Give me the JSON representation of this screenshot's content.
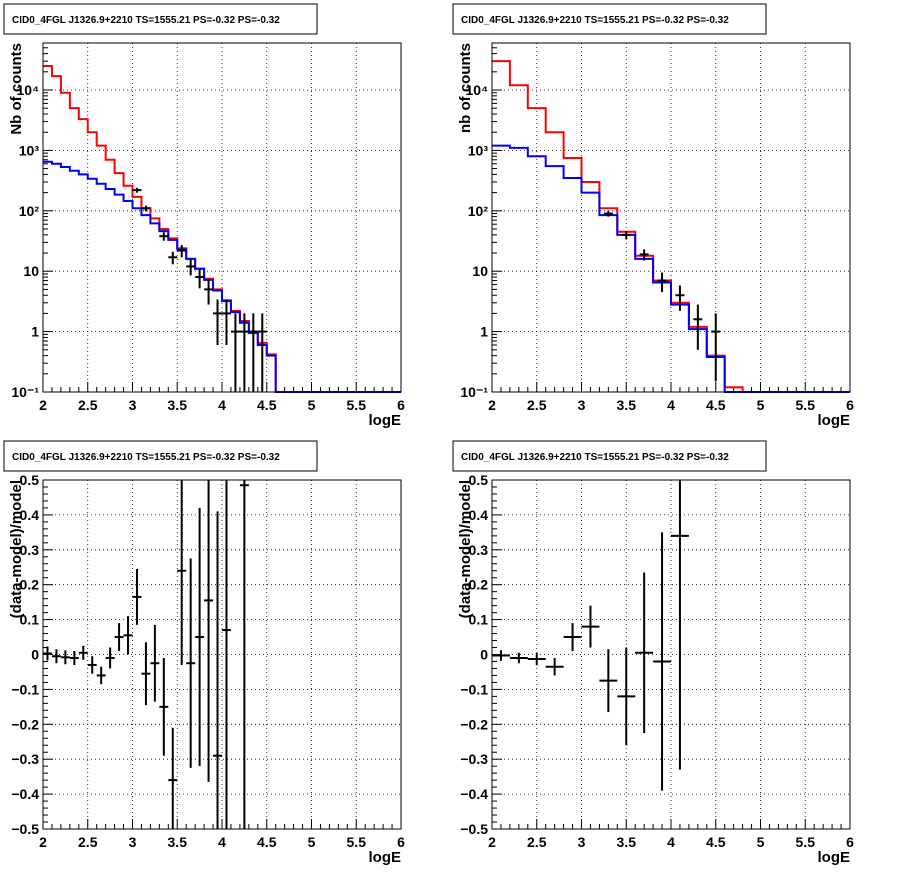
{
  "chart_data": [
    {
      "type": "line",
      "panel": "top-left",
      "title": "CID0_4FGL J1326.9+2210 TS=1555.21 PS=-0.32 PS=-0.32",
      "xlabel": "logE",
      "ylabel": "Nb of counts",
      "xlim": [
        2,
        6
      ],
      "ylim": [
        0.1,
        60000
      ],
      "yscale": "log",
      "xticks": [
        2,
        2.5,
        3,
        3.5,
        4,
        4.5,
        5,
        5.5,
        6
      ],
      "xtick_labels": [
        "2",
        "2.5",
        "3",
        "3.5",
        "4",
        "4.5",
        "5",
        "5.5",
        "6"
      ],
      "yticks": [
        0.1,
        1,
        10,
        100,
        1000,
        10000
      ],
      "ytick_labels": [
        "10⁻¹",
        "1",
        "10",
        "10²",
        "10³",
        "10⁴"
      ],
      "grid": true,
      "bin_edges": [
        2.0,
        2.1,
        2.2,
        2.3,
        2.4,
        2.5,
        2.6,
        2.7,
        2.8,
        2.9,
        3.0,
        3.1,
        3.2,
        3.3,
        3.4,
        3.5,
        3.6,
        3.7,
        3.8,
        3.9,
        4.0,
        4.1,
        4.2,
        4.3,
        4.4,
        4.5,
        4.6,
        4.7,
        4.8,
        4.9,
        5.0,
        5.1,
        5.2,
        5.3,
        5.4,
        5.5,
        5.6,
        5.7,
        5.8,
        5.9,
        6.0
      ],
      "series": [
        {
          "color": "#ff0000",
          "style": "histogram",
          "values": [
            25000,
            17000,
            9000,
            5000,
            3300,
            2000,
            1200,
            700,
            420,
            260,
            170,
            110,
            75,
            50,
            35,
            24,
            16,
            11,
            7.5,
            5,
            3.3,
            2.2,
            1.5,
            1.0,
            0.65,
            0.42,
            0.1,
            0.1,
            0.1,
            0.1,
            0.1,
            0.1,
            0.1,
            0.1,
            0.1,
            0.1,
            0.1,
            0.1,
            0.1,
            0.1
          ]
        },
        {
          "color": "#0000ff",
          "style": "histogram",
          "values": [
            650,
            600,
            530,
            460,
            400,
            340,
            280,
            230,
            185,
            145,
            110,
            85,
            62,
            46,
            33,
            23,
            16,
            11,
            7.2,
            4.8,
            3.2,
            2.1,
            1.4,
            0.95,
            0.6,
            0.4,
            0.1,
            0.1,
            0.1,
            0.1,
            0.1,
            0.1,
            0.1,
            0.1,
            0.1,
            0.1,
            0.1,
            0.1,
            0.1,
            0.1
          ]
        }
      ],
      "data_points": [
        {
          "x": 3.05,
          "y": 220,
          "ylo": 200,
          "yhi": 240
        },
        {
          "x": 3.15,
          "y": 110,
          "ylo": 98,
          "yhi": 122
        },
        {
          "x": 3.35,
          "y": 38,
          "ylo": 32,
          "yhi": 44
        },
        {
          "x": 3.45,
          "y": 17,
          "ylo": 13,
          "yhi": 21
        },
        {
          "x": 3.55,
          "y": 22,
          "ylo": 17,
          "yhi": 27
        },
        {
          "x": 3.65,
          "y": 12,
          "ylo": 8.5,
          "yhi": 15.5
        },
        {
          "x": 3.75,
          "y": 8,
          "ylo": 5.2,
          "yhi": 10.8
        },
        {
          "x": 3.85,
          "y": 5,
          "ylo": 2.8,
          "yhi": 7.2
        },
        {
          "x": 3.95,
          "y": 2,
          "ylo": 0.6,
          "yhi": 3.4
        },
        {
          "x": 4.05,
          "y": 2,
          "ylo": 0.6,
          "yhi": 3.4
        },
        {
          "x": 4.15,
          "y": 1,
          "ylo": 0.1,
          "yhi": 2.0
        },
        {
          "x": 4.25,
          "y": 1,
          "ylo": 0.1,
          "yhi": 2.0
        },
        {
          "x": 4.35,
          "y": 1,
          "ylo": 0.1,
          "yhi": 2.0
        },
        {
          "x": 4.45,
          "y": 1,
          "ylo": 0.1,
          "yhi": 2.0
        }
      ]
    },
    {
      "type": "line",
      "panel": "top-right",
      "title": "CID0_4FGL J1326.9+2210 TS=1555.21 PS=-0.32 PS=-0.32",
      "xlabel": "logE",
      "ylabel": "nb of counts",
      "xlim": [
        2,
        6
      ],
      "ylim": [
        0.1,
        60000
      ],
      "yscale": "log",
      "xticks": [
        2,
        2.5,
        3,
        3.5,
        4,
        4.5,
        5,
        5.5,
        6
      ],
      "xtick_labels": [
        "2",
        "2.5",
        "3",
        "3.5",
        "4",
        "4.5",
        "5",
        "5.5",
        "6"
      ],
      "yticks": [
        0.1,
        1,
        10,
        100,
        1000,
        10000
      ],
      "ytick_labels": [
        "10⁻¹",
        "1",
        "10",
        "10²",
        "10³",
        "10⁴"
      ],
      "grid": true,
      "bin_edges": [
        2.0,
        2.2,
        2.4,
        2.6,
        2.8,
        3.0,
        3.2,
        3.4,
        3.6,
        3.8,
        4.0,
        4.2,
        4.4,
        4.6,
        4.8,
        5.0,
        5.2,
        5.4,
        5.6,
        5.8,
        6.0
      ],
      "series": [
        {
          "color": "#ff0000",
          "style": "histogram",
          "values": [
            30000,
            12000,
            5000,
            2000,
            750,
            300,
            110,
            45,
            18,
            7,
            3,
            1.2,
            0.4,
            0.12,
            0.1,
            0.1,
            0.1,
            0.1,
            0.1,
            0.1
          ]
        },
        {
          "color": "#0000ff",
          "style": "histogram",
          "values": [
            1200,
            1100,
            800,
            550,
            350,
            200,
            85,
            40,
            16,
            6.5,
            2.8,
            1.1,
            0.38,
            0.1,
            0.1,
            0.1,
            0.1,
            0.1,
            0.1,
            0.1
          ]
        }
      ],
      "data_points": [
        {
          "x": 3.3,
          "y": 90,
          "ylo": 80,
          "yhi": 100
        },
        {
          "x": 3.5,
          "y": 40,
          "ylo": 34,
          "yhi": 46
        },
        {
          "x": 3.7,
          "y": 19,
          "ylo": 15,
          "yhi": 23
        },
        {
          "x": 3.9,
          "y": 7,
          "ylo": 4.5,
          "yhi": 9.5
        },
        {
          "x": 4.1,
          "y": 4,
          "ylo": 2.2,
          "yhi": 5.8
        },
        {
          "x": 4.3,
          "y": 1.6,
          "ylo": 0.5,
          "yhi": 2.8
        },
        {
          "x": 4.5,
          "y": 1,
          "ylo": 0.15,
          "yhi": 2.0
        }
      ]
    },
    {
      "type": "scatter",
      "panel": "bottom-left",
      "title": "CID0_4FGL J1326.9+2210 TS=1555.21 PS=-0.32 PS=-0.32",
      "xlabel": "logE",
      "ylabel": "(data-model)/model",
      "xlim": [
        2,
        6
      ],
      "ylim": [
        -0.5,
        0.5
      ],
      "yscale": "linear",
      "xticks": [
        2,
        2.5,
        3,
        3.5,
        4,
        4.5,
        5,
        5.5,
        6
      ],
      "xtick_labels": [
        "2",
        "2.5",
        "3",
        "3.5",
        "4",
        "4.5",
        "5",
        "5.5",
        "6"
      ],
      "yticks": [
        -0.5,
        -0.4,
        -0.3,
        -0.2,
        -0.1,
        0,
        0.1,
        0.2,
        0.3,
        0.4,
        0.5
      ],
      "ytick_labels": [
        "−0.5",
        "−0.4",
        "−0.3",
        "−0.2",
        "−0.1",
        "0",
        "0.1",
        "0.2",
        "0.3",
        "0.4",
        "0.5"
      ],
      "grid": true,
      "data_points": [
        {
          "x": 2.05,
          "y": 0.003,
          "err": 0.02,
          "xerr": 0.05
        },
        {
          "x": 2.15,
          "y": -0.005,
          "err": 0.02,
          "xerr": 0.05
        },
        {
          "x": 2.25,
          "y": -0.008,
          "err": 0.02,
          "xerr": 0.05
        },
        {
          "x": 2.35,
          "y": -0.01,
          "err": 0.02,
          "xerr": 0.05
        },
        {
          "x": 2.45,
          "y": 0.005,
          "err": 0.02,
          "xerr": 0.05
        },
        {
          "x": 2.55,
          "y": -0.03,
          "err": 0.025,
          "xerr": 0.05
        },
        {
          "x": 2.65,
          "y": -0.06,
          "err": 0.025,
          "xerr": 0.05
        },
        {
          "x": 2.75,
          "y": -0.01,
          "err": 0.03,
          "xerr": 0.05
        },
        {
          "x": 2.85,
          "y": 0.05,
          "err": 0.04,
          "xerr": 0.05
        },
        {
          "x": 2.95,
          "y": 0.055,
          "err": 0.055,
          "xerr": 0.05
        },
        {
          "x": 3.05,
          "y": 0.165,
          "err": 0.08,
          "xerr": 0.05
        },
        {
          "x": 3.15,
          "y": -0.055,
          "err": 0.09,
          "xerr": 0.05
        },
        {
          "x": 3.25,
          "y": -0.025,
          "err": 0.11,
          "xerr": 0.05
        },
        {
          "x": 3.35,
          "y": -0.15,
          "err": 0.14,
          "xerr": 0.05
        },
        {
          "x": 3.45,
          "y": -0.36,
          "err": 0.15,
          "xerr": 0.05
        },
        {
          "x": 3.55,
          "y": 0.24,
          "err": 0.27,
          "xerr": 0.05
        },
        {
          "x": 3.65,
          "y": -0.025,
          "err": 0.3,
          "xerr": 0.05
        },
        {
          "x": 3.75,
          "y": 0.05,
          "err": 0.37,
          "xerr": 0.05
        },
        {
          "x": 3.85,
          "y": 0.155,
          "err": 0.52,
          "xerr": 0.05
        },
        {
          "x": 3.95,
          "y": -0.29,
          "err": 0.7,
          "xerr": 0.05
        },
        {
          "x": 4.05,
          "y": 0.07,
          "err": 0.8,
          "xerr": 0.05
        },
        {
          "x": 4.25,
          "y": 0.485,
          "err": 1.0,
          "xerr": 0.05
        }
      ]
    },
    {
      "type": "scatter",
      "panel": "bottom-right",
      "title": "CID0_4FGL J1326.9+2210 TS=1555.21 PS=-0.32 PS=-0.32",
      "xlabel": "logE",
      "ylabel": "(data-model)/model",
      "xlim": [
        2,
        6
      ],
      "ylim": [
        -0.5,
        0.5
      ],
      "yscale": "linear",
      "xticks": [
        2,
        2.5,
        3,
        3.5,
        4,
        4.5,
        5,
        5.5,
        6
      ],
      "xtick_labels": [
        "2",
        "2.5",
        "3",
        "3.5",
        "4",
        "4.5",
        "5",
        "5.5",
        "6"
      ],
      "yticks": [
        -0.5,
        -0.4,
        -0.3,
        -0.2,
        -0.1,
        0,
        0.1,
        0.2,
        0.3,
        0.4,
        0.5
      ],
      "ytick_labels": [
        "−0.5",
        "−0.4",
        "−0.3",
        "−0.2",
        "−0.1",
        "0",
        "0.1",
        "0.2",
        "0.3",
        "0.4",
        "0.5"
      ],
      "grid": true,
      "data_points": [
        {
          "x": 2.1,
          "y": -0.003,
          "err": 0.015,
          "xerr": 0.1
        },
        {
          "x": 2.3,
          "y": -0.01,
          "err": 0.015,
          "xerr": 0.1
        },
        {
          "x": 2.5,
          "y": -0.013,
          "err": 0.018,
          "xerr": 0.1
        },
        {
          "x": 2.7,
          "y": -0.035,
          "err": 0.025,
          "xerr": 0.1
        },
        {
          "x": 2.9,
          "y": 0.05,
          "err": 0.04,
          "xerr": 0.1
        },
        {
          "x": 3.1,
          "y": 0.08,
          "err": 0.06,
          "xerr": 0.1
        },
        {
          "x": 3.3,
          "y": -0.075,
          "err": 0.09,
          "xerr": 0.1
        },
        {
          "x": 3.5,
          "y": -0.12,
          "err": 0.14,
          "xerr": 0.1
        },
        {
          "x": 3.7,
          "y": 0.005,
          "err": 0.23,
          "xerr": 0.1
        },
        {
          "x": 3.9,
          "y": -0.02,
          "err": 0.37,
          "xerr": 0.1
        },
        {
          "x": 4.1,
          "y": 0.34,
          "err": 0.67,
          "xerr": 0.1
        }
      ]
    }
  ]
}
